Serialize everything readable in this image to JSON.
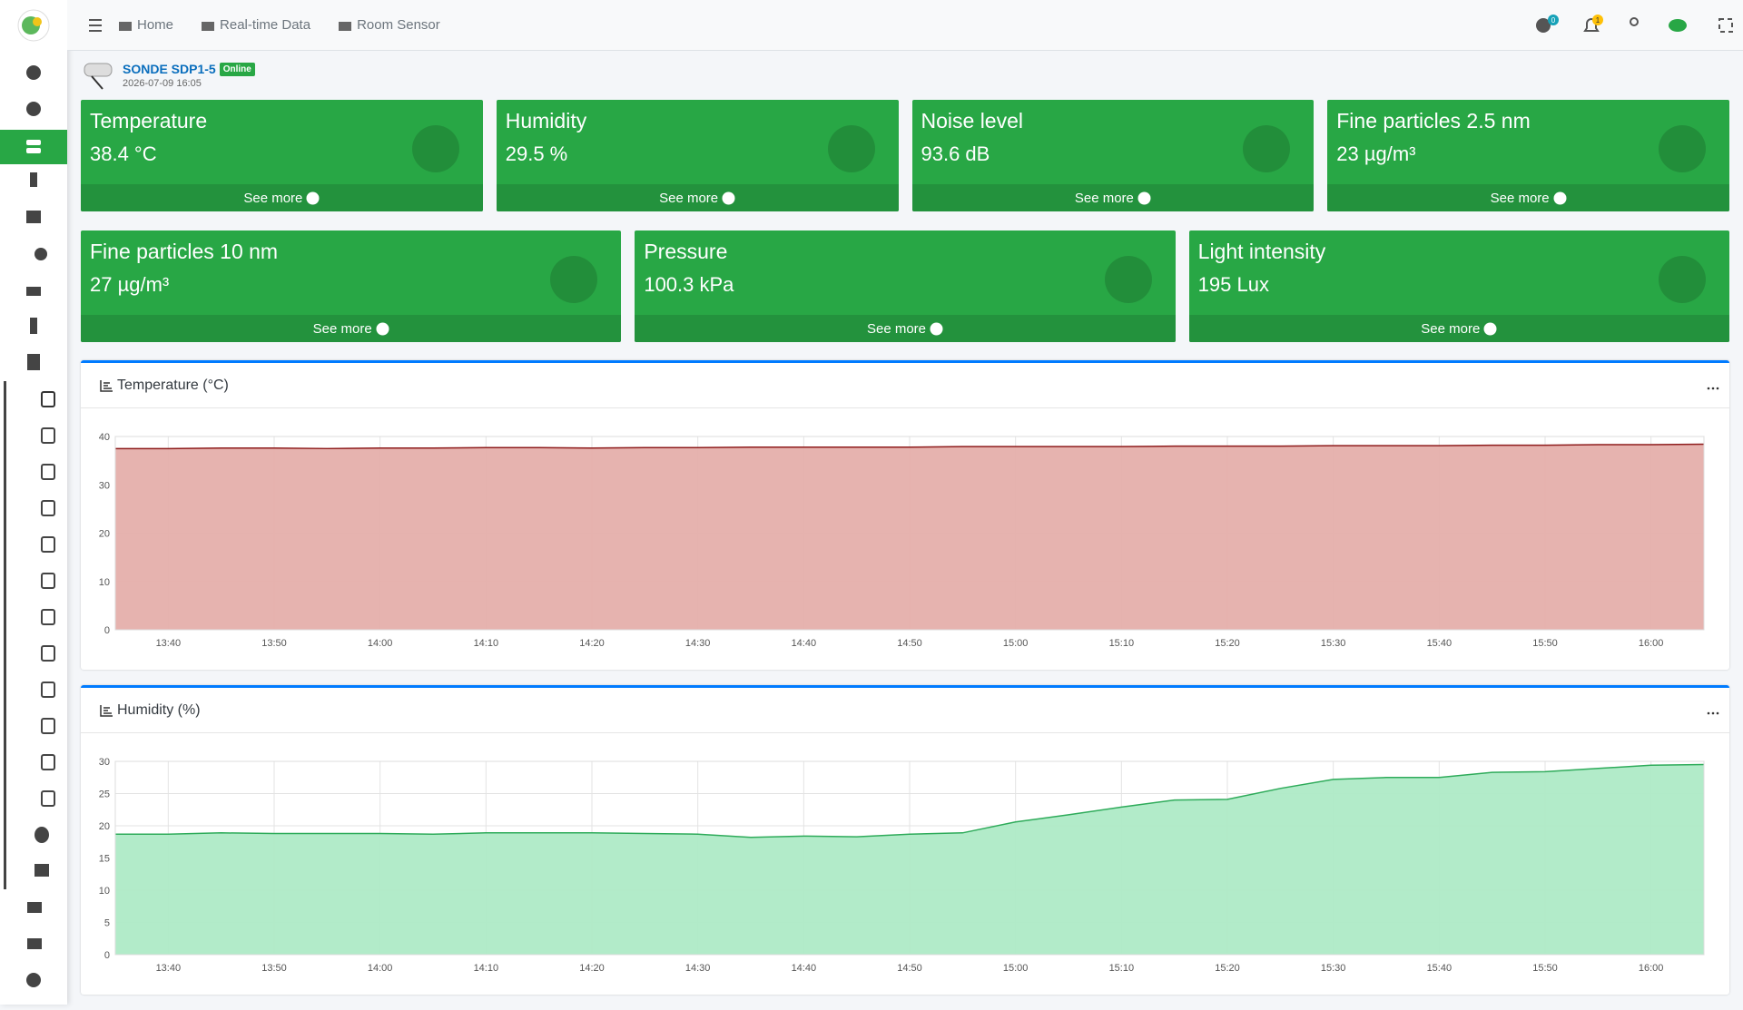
{
  "nav": [
    "Home",
    "Real-time Data",
    "Room Sensor"
  ],
  "badges": [
    "0",
    "1"
  ],
  "device": {
    "name": "SONDE SDP1-5",
    "status": "Online",
    "timestamp": "2026-07-09 16:05"
  },
  "cards": [
    {
      "title": "Temperature",
      "value": "38.4 °C",
      "link": "See more"
    },
    {
      "title": "Humidity",
      "value": "29.5 %",
      "link": "See more"
    },
    {
      "title": "Noise level",
      "value": "93.6 dB",
      "link": "See more"
    },
    {
      "title": "Fine particles 2.5 nm",
      "value": "23 µg/m³",
      "link": "See more"
    },
    {
      "title": "Fine particles 10 nm",
      "value": "27 µg/m³",
      "link": "See more"
    },
    {
      "title": "Pressure",
      "value": "100.3 kPa",
      "link": "See more"
    },
    {
      "title": "Light intensity",
      "value": "195 Lux",
      "link": "See more"
    }
  ],
  "chart_data": [
    {
      "type": "area",
      "title": "Temperature (°C)",
      "categories": [
        null,
        "13:40",
        null,
        "13:50",
        null,
        "14:00",
        null,
        "14:10",
        null,
        "14:20",
        null,
        "14:30",
        null,
        "14:40",
        null,
        "14:50",
        null,
        "15:00",
        null,
        "15:10",
        null,
        "15:20",
        null,
        "15:30",
        null,
        "15:40",
        null,
        "15:50",
        null,
        "16:00",
        null
      ],
      "values": [
        37.5,
        37.5,
        37.6,
        37.6,
        37.5,
        37.6,
        37.6,
        37.7,
        37.7,
        37.6,
        37.7,
        37.7,
        37.8,
        37.8,
        37.8,
        37.8,
        37.9,
        37.9,
        37.9,
        37.9,
        38.0,
        38.0,
        38.0,
        38.1,
        38.1,
        38.1,
        38.2,
        38.2,
        38.3,
        38.3,
        38.4
      ],
      "color": "#8e1c1c",
      "fill": "#e5afab",
      "ylim": [
        0,
        40
      ],
      "yticks": [
        0,
        10,
        20,
        30,
        40
      ],
      "grid": true
    },
    {
      "type": "area",
      "title": "Humidity (%)",
      "categories": [
        null,
        "13:40",
        null,
        "13:50",
        null,
        "14:00",
        null,
        "14:10",
        null,
        "14:20",
        null,
        "14:30",
        null,
        "14:40",
        null,
        "14:50",
        null,
        "15:00",
        null,
        "15:10",
        null,
        "15:20",
        null,
        "15:30",
        null,
        "15:40",
        null,
        "15:50",
        null,
        "16:00",
        null
      ],
      "values": [
        18.7,
        18.7,
        18.9,
        18.8,
        18.8,
        18.8,
        18.7,
        18.9,
        18.9,
        18.9,
        18.8,
        18.7,
        18.2,
        18.4,
        18.3,
        18.7,
        18.9,
        20.6,
        21.7,
        22.9,
        24.0,
        24.1,
        25.8,
        27.2,
        27.5,
        27.5,
        28.3,
        28.4,
        28.9,
        29.4,
        29.5
      ],
      "color": "#2eab5a",
      "fill": "#aeeac6",
      "ylim": [
        0,
        30
      ],
      "yticks": [
        0,
        5,
        10,
        15,
        20,
        25,
        30
      ],
      "grid": true
    }
  ]
}
